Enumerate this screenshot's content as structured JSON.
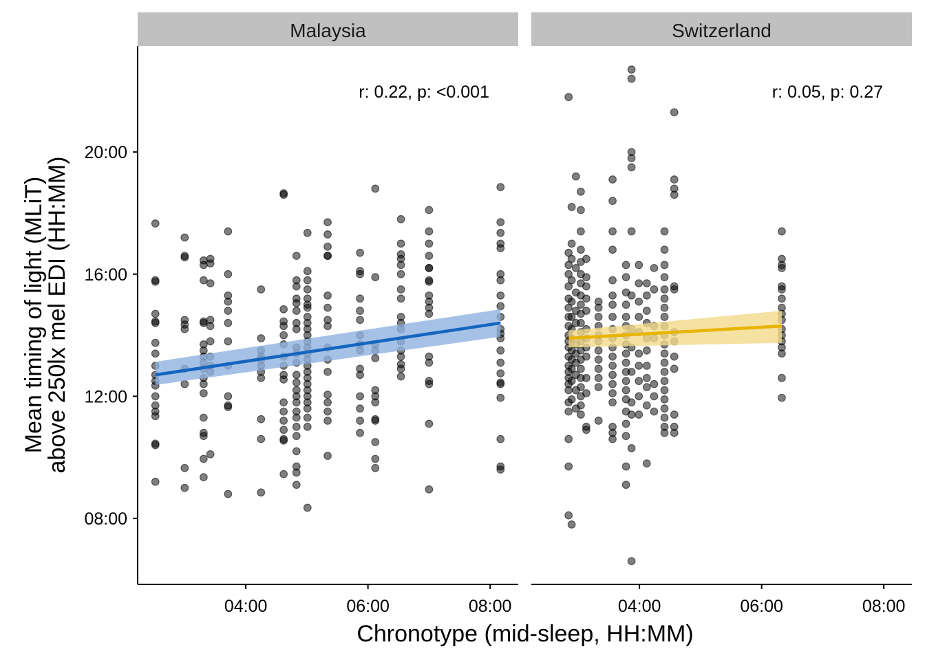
{
  "chart_data": {
    "type": "scatter",
    "xlabel": "Chronotype (mid-sleep, HH:MM)",
    "ylabel": [
      "Mean timing of light (MLiT)",
      "above 250lx mel EDI (HH:MM)"
    ],
    "xlim": [
      2.23,
      8.46
    ],
    "ylim": [
      5.84,
      23.47
    ],
    "xticks": [
      {
        "v": 4,
        "label": "04:00"
      },
      {
        "v": 6,
        "label": "06:00"
      },
      {
        "v": 8,
        "label": "08:00"
      }
    ],
    "yticks": [
      {
        "v": 8,
        "label": "08:00"
      },
      {
        "v": 12,
        "label": "12:00"
      },
      {
        "v": 16,
        "label": "16:00"
      },
      {
        "v": 20,
        "label": "20:00"
      }
    ],
    "panels": [
      {
        "name": "Malaysia",
        "annotation": "r: 0.22, p: <0.001",
        "color": "#1565c0",
        "ribbon_color": "#8fb3e0",
        "fit": {
          "x": [
            2.52,
            8.17
          ],
          "y": [
            12.7,
            14.4
          ],
          "lo": [
            12.37,
            13.95
          ],
          "hi": [
            13.13,
            14.85
          ]
        },
        "columns": [
          {
            "x": 2.52,
            "ys": [
              17.66,
              15.8,
              15.75,
              14.7,
              14.45,
              14.4,
              13.75,
              13.4,
              13.0,
              12.7,
              12.5,
              12.35,
              12.0,
              11.7,
              11.5,
              11.35,
              10.45,
              10.4,
              9.2
            ]
          },
          {
            "x": 3.0,
            "ys": [
              17.2,
              16.6,
              16.55,
              14.5,
              14.35,
              14.2,
              12.9,
              12.4,
              9.65,
              9.0
            ]
          },
          {
            "x": 3.31,
            "ys": [
              16.45,
              16.3,
              15.8,
              14.45,
              14.4,
              13.7,
              13.5,
              13.3,
              13.1,
              12.9,
              12.6,
              12.4,
              12.1,
              11.3,
              10.8,
              10.7,
              9.95,
              9.35
            ]
          },
          {
            "x": 3.42,
            "ys": [
              16.5,
              16.35,
              15.7,
              14.5,
              14.3,
              13.8,
              13.3,
              13.0,
              12.8,
              10.1
            ]
          },
          {
            "x": 3.71,
            "ys": [
              17.4,
              16.0,
              15.3,
              15.1,
              14.8,
              14.4,
              13.8,
              13.0,
              12.0,
              11.7,
              11.65,
              8.8
            ]
          },
          {
            "x": 4.25,
            "ys": [
              15.5,
              13.9,
              13.5,
              13.3,
              13.2,
              13.0,
              12.8,
              12.6,
              11.25,
              10.6,
              8.85
            ]
          },
          {
            "x": 4.62,
            "ys": [
              18.65,
              18.6,
              14.85,
              14.45,
              14.3,
              14.0,
              13.7,
              13.3,
              13.0,
              12.7,
              12.55,
              11.8,
              11.5,
              11.2,
              10.9,
              10.6,
              10.55,
              9.45
            ]
          },
          {
            "x": 4.83,
            "ys": [
              16.6,
              15.8,
              15.6,
              15.2,
              15.05,
              14.8,
              14.4,
              14.2,
              13.6,
              13.4,
              13.1,
              12.7,
              12.45,
              12.2,
              12.0,
              11.8,
              11.5,
              11.3,
              11.0,
              10.7,
              10.2,
              9.7,
              9.5,
              9.1
            ]
          },
          {
            "x": 5.01,
            "ys": [
              17.35,
              16.1,
              15.8,
              15.5,
              15.2,
              15.0,
              14.9,
              14.6,
              14.4,
              14.2,
              14.0,
              13.8,
              13.6,
              13.4,
              13.2,
              13.0,
              12.8,
              12.6,
              12.4,
              12.2,
              12.0,
              11.8,
              11.6,
              11.3,
              11.0,
              8.35
            ]
          },
          {
            "x": 5.34,
            "ys": [
              17.7,
              17.3,
              16.9,
              16.6,
              16.6,
              15.3,
              14.9,
              14.5,
              14.3,
              13.6,
              13.2,
              12.8,
              12.05,
              11.8,
              11.5,
              11.2,
              10.05
            ]
          },
          {
            "x": 5.87,
            "ys": [
              16.7,
              16.1,
              16.0,
              15.2,
              14.8,
              14.5,
              14.0,
              13.7,
              13.5,
              12.9,
              12.7,
              12.0,
              11.6,
              11.2,
              10.8
            ]
          },
          {
            "x": 6.12,
            "ys": [
              18.8,
              15.9,
              13.7,
              13.5,
              13.25,
              12.2,
              12.0,
              11.8,
              11.25,
              11.2,
              10.5,
              9.95,
              9.65
            ]
          },
          {
            "x": 6.54,
            "ys": [
              17.8,
              17.0,
              16.65,
              16.5,
              16.3,
              16.0,
              15.5,
              15.2,
              14.6,
              14.4,
              14.2,
              13.8,
              13.5,
              13.3,
              13.05,
              12.9,
              12.65
            ]
          },
          {
            "x": 7.0,
            "ys": [
              18.1,
              17.4,
              17.0,
              16.6,
              16.2,
              16.2,
              15.8,
              15.75,
              15.3,
              15.1,
              14.9,
              14.7,
              13.3,
              13.1,
              12.5,
              12.4,
              11.1,
              8.95
            ]
          },
          {
            "x": 8.17,
            "ys": [
              18.85,
              17.7,
              17.35,
              17.0,
              16.85,
              16.0,
              15.8,
              15.3,
              14.95,
              14.6,
              14.2,
              14.05,
              13.9,
              13.5,
              13.1,
              12.75,
              12.45,
              12.4,
              11.95,
              10.6,
              9.7,
              9.6
            ]
          }
        ]
      },
      {
        "name": "Switzerland",
        "annotation": "r: 0.05, p: 0.27",
        "color": "#e8b400",
        "ribbon_color": "#f3d98a",
        "fit": {
          "x": [
            2.84,
            6.33
          ],
          "y": [
            13.9,
            14.3
          ],
          "lo": [
            13.6,
            13.75
          ],
          "hi": [
            14.15,
            14.8
          ]
        },
        "columns": [
          {
            "x": 2.84,
            "ys": [
              21.8,
              16.7,
              16.3,
              16.0,
              15.6,
              15.2,
              14.9,
              14.6,
              14.3,
              14.0,
              13.8,
              13.6,
              13.3,
              13.0,
              12.8,
              12.6,
              12.4,
              12.2,
              11.8,
              11.5,
              10.6,
              9.7,
              8.1
            ]
          },
          {
            "x": 2.89,
            "ys": [
              18.2,
              17.0,
              16.5,
              15.8,
              15.1,
              14.6,
              14.2,
              13.9,
              13.5,
              13.2,
              12.9,
              12.5,
              11.9,
              7.8
            ]
          },
          {
            "x": 2.96,
            "ys": [
              19.2,
              16.2,
              15.4,
              14.8,
              14.4,
              13.7,
              13.4,
              13.1,
              12.7,
              12.2,
              11.6
            ]
          },
          {
            "x": 3.04,
            "ys": [
              18.7,
              18.1,
              17.4,
              16.8,
              16.4,
              16.0,
              15.7,
              15.3,
              15.0,
              14.7,
              14.4,
              14.1,
              13.8,
              13.5,
              13.2,
              12.9,
              12.6,
              12.3,
              12.0,
              11.7,
              11.4
            ]
          },
          {
            "x": 3.13,
            "ys": [
              16.5,
              15.9,
              15.6,
              15.2,
              14.8,
              14.2,
              13.9,
              13.6,
              13.3,
              12.6,
              12.1,
              11.0,
              10.9
            ]
          },
          {
            "x": 3.33,
            "ys": [
              15.1,
              14.9,
              14.6,
              14.3,
              14.0,
              13.8,
              13.5,
              13.2,
              12.9,
              12.6,
              12.3,
              11.2
            ]
          },
          {
            "x": 3.56,
            "ys": [
              19.1,
              18.4,
              17.4,
              16.8,
              15.8,
              15.3,
              15.0,
              14.6,
              14.2,
              13.9,
              13.6,
              13.3,
              13.0,
              12.7,
              12.4,
              12.1,
              11.8,
              11.0,
              10.8,
              10.6
            ]
          },
          {
            "x": 3.78,
            "ys": [
              16.3,
              15.9,
              15.4,
              15.0,
              14.6,
              14.3,
              14.0,
              13.7,
              13.4,
              13.1,
              12.8,
              12.5,
              12.2,
              11.9,
              11.5,
              11.1,
              10.7,
              9.7,
              9.1
            ]
          },
          {
            "x": 3.87,
            "ys": [
              22.7,
              22.4,
              20.0,
              19.8,
              19.5,
              17.4,
              15.3,
              14.2,
              13.6,
              12.8,
              11.8,
              11.4,
              10.3,
              6.6
            ]
          },
          {
            "x": 3.99,
            "ys": [
              16.3,
              15.7,
              15.1,
              14.6,
              14.1,
              13.4,
              13.0,
              12.5,
              12.0,
              11.4
            ]
          },
          {
            "x": 4.12,
            "ys": [
              15.7,
              15.3,
              14.8,
              14.4,
              13.9,
              13.5,
              13.0,
              12.6,
              12.3,
              11.7,
              9.8
            ]
          },
          {
            "x": 4.24,
            "ys": [
              16.2,
              15.5,
              14.3,
              13.9,
              12.4,
              12.0,
              11.5
            ]
          },
          {
            "x": 4.41,
            "ys": [
              17.4,
              16.8,
              16.3,
              15.9,
              15.5,
              15.2,
              14.9,
              14.6,
              14.3,
              14.0,
              13.7,
              13.4,
              13.1,
              12.8,
              12.5,
              12.2,
              11.9,
              11.6,
              11.3,
              11.0,
              10.8
            ]
          },
          {
            "x": 4.57,
            "ys": [
              21.3,
              19.1,
              18.8,
              18.6,
              15.6,
              15.5,
              14.1,
              13.8,
              13.3,
              12.9,
              11.4,
              11.0,
              10.8
            ]
          },
          {
            "x": 6.33,
            "ys": [
              17.4,
              16.5,
              16.3,
              16.2,
              15.6,
              15.5,
              15.2,
              14.9,
              14.7,
              14.5,
              14.2,
              14.0,
              13.8,
              13.6,
              13.4,
              12.6,
              11.95
            ]
          }
        ]
      }
    ]
  }
}
